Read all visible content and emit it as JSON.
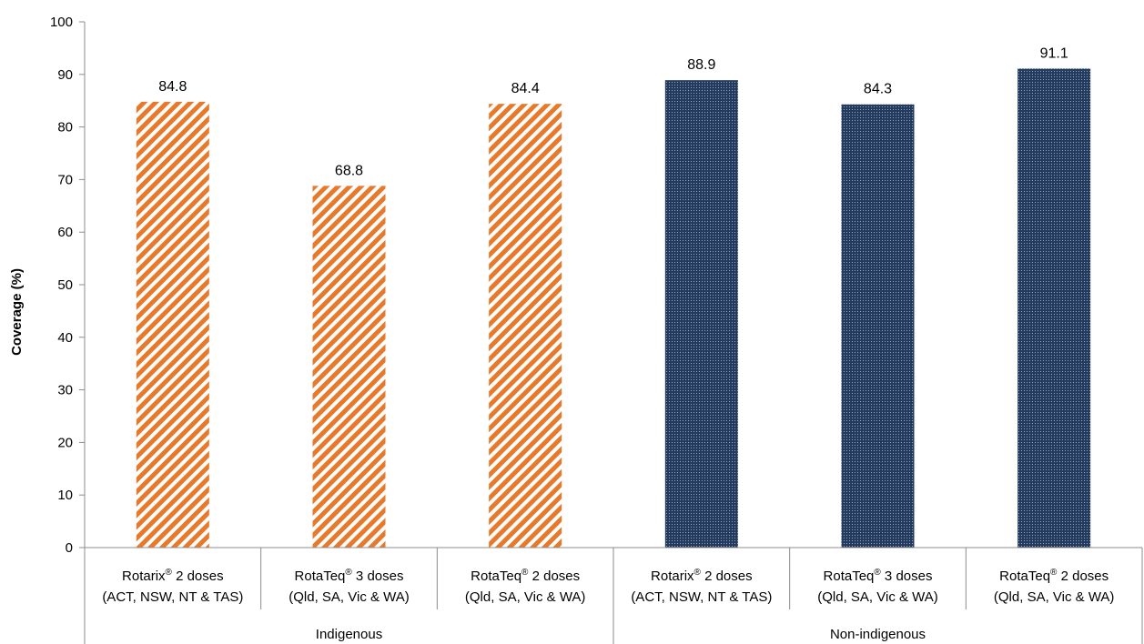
{
  "chart_data": {
    "type": "bar",
    "title": "",
    "ylabel": "Coverage (%)",
    "xlabel": "",
    "ylim": [
      0,
      100
    ],
    "yticks": [
      "0",
      "10",
      "20",
      "30",
      "40",
      "50",
      "60",
      "70",
      "80",
      "90",
      "100"
    ],
    "grid": false,
    "legend": "none",
    "categories": [
      {
        "vaccine": "Rotarix",
        "doses": " 2 doses",
        "states": "(ACT, NSW, NT & TAS)"
      },
      {
        "vaccine": "RotaTeq",
        "doses": " 3 doses",
        "states": "(Qld, SA, Vic & WA)"
      },
      {
        "vaccine": "RotaTeq",
        "doses": " 2 doses",
        "states": "(Qld, SA, Vic & WA)"
      },
      {
        "vaccine": "Rotarix",
        "doses": " 2 doses",
        "states": "(ACT, NSW, NT & TAS)"
      },
      {
        "vaccine": "RotaTeq",
        "doses": " 3 doses",
        "states": "(Qld, SA, Vic & WA)"
      },
      {
        "vaccine": "RotaTeq",
        "doses": " 2 doses",
        "states": "(Qld, SA, Vic & WA)"
      }
    ],
    "registered_mark": "®",
    "groups": [
      "Indigenous",
      "Non-indigenous"
    ],
    "values": [
      84.8,
      68.8,
      84.4,
      88.9,
      84.3,
      91.1
    ],
    "value_labels": [
      "84.8",
      "68.8",
      "84.4",
      "88.9",
      "84.3",
      "91.1"
    ],
    "group_of_bar": [
      0,
      0,
      0,
      1,
      1,
      1
    ],
    "colors": {
      "indigenous": "#e8792a",
      "non_indigenous": "#243b5e"
    }
  }
}
